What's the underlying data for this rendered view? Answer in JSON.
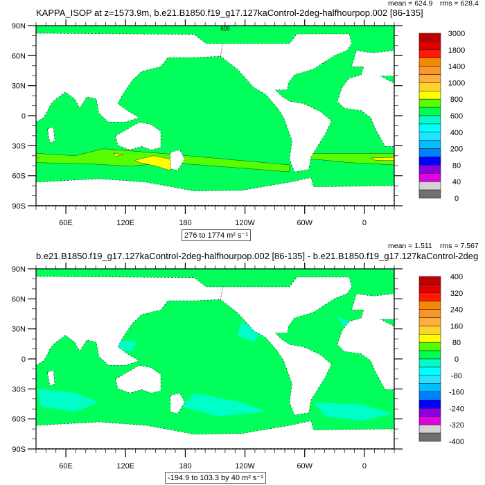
{
  "panels": [
    {
      "title": "KAPPA_ISOP at z=1573.9m, b.e21.B1850.f19_g17.127kaControl-2deg-halfhourpop.002 [86-135]",
      "mean": "mean = 624.9",
      "rms": "rms = 628.4",
      "info_box": "276 to 1774 m² s⁻¹",
      "contour_label": "600",
      "colorbar_labels": [
        "3000",
        "1800",
        "1400",
        "1000",
        "800",
        "600",
        "400",
        "200",
        "80",
        "40",
        "0"
      ]
    },
    {
      "title": "b.e21.B1850.f19_g17.127kaControl-2deg-halfhourpop.002 [86-135] - b.e21.B1850.f19_g17.127kaControl-2deg",
      "mean": "mean = 1.511",
      "rms": "rms = 7.567",
      "info_box": "-194.9 to 103.3 by 40 m² s⁻¹",
      "colorbar_labels": [
        "400",
        "320",
        "240",
        "160",
        "80",
        "0",
        "-80",
        "-160",
        "-240",
        "-320",
        "-400"
      ]
    }
  ],
  "lat_labels": [
    "90N",
    "60N",
    "30N",
    "0",
    "30S",
    "60S",
    "90S"
  ],
  "lon_labels": [
    "60E",
    "120E",
    "180",
    "120W",
    "60W",
    "0"
  ],
  "colorbar_colors": [
    "#BE0000",
    "#E00000",
    "#FF1A00",
    "#F58A00",
    "#FA9628",
    "#FFAE3A",
    "#FFD22C",
    "#FFFF00",
    "#55FF00",
    "#00FF50",
    "#00FFC8",
    "#00FFFF",
    "#1EE6FF",
    "#00BEFF",
    "#0080FF",
    "#0000FF",
    "#8C00E0",
    "#E000E0",
    "#D2D2D2",
    "#707070"
  ],
  "colors": {
    "ocean": "#00FF5A",
    "band": "#55FF00",
    "high": "#FFFF00",
    "peak": "#FA9628",
    "cyan": "#00FFC8"
  }
}
